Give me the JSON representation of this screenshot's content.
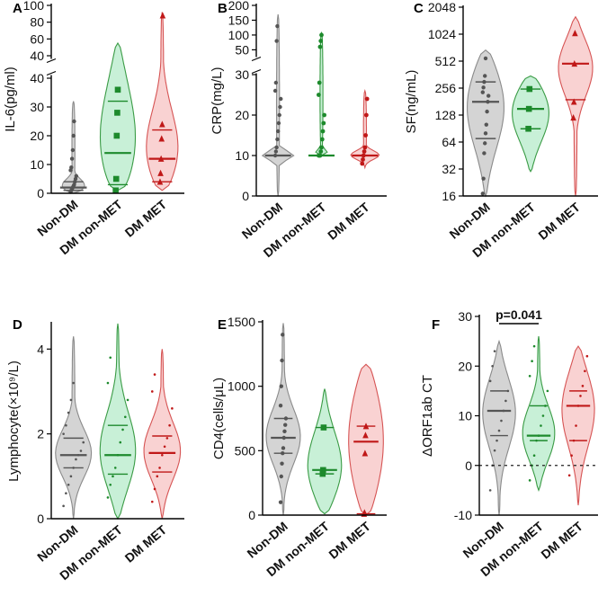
{
  "colors": {
    "grey": {
      "fill": "#d4d4d4",
      "stroke": "#8a8a8a",
      "mark": "#555555"
    },
    "green": {
      "fill": "#c8f0d7",
      "stroke": "#3a9b45",
      "mark": "#1d8a2c"
    },
    "red": {
      "fill": "#f9d2d2",
      "stroke": "#d65454",
      "mark": "#c01818"
    }
  },
  "chart_data": [
    {
      "panel": "A",
      "type": "violin",
      "ylabel": "IL-6(pg/ml)",
      "categories": [
        "Non-DM",
        "DM non-MET",
        "DM MET"
      ],
      "segments": [
        {
          "min": 0,
          "max": 40,
          "ticks": [
            0,
            10,
            20,
            30,
            40
          ]
        },
        {
          "min": 40,
          "max": 100,
          "ticks": [
            40,
            60,
            80,
            100
          ]
        }
      ],
      "groups": [
        {
          "median": 2,
          "q1": 1,
          "q3": 4,
          "min": 0,
          "max": 32,
          "points": [
            0.5,
            1,
            1.5,
            2,
            2.5,
            3,
            4,
            5,
            6,
            8,
            9,
            12,
            15,
            20,
            25
          ]
        },
        {
          "median": 14,
          "q1": 3,
          "q3": 32,
          "min": 1,
          "max": 55,
          "points": [
            1,
            5,
            20,
            28,
            36
          ]
        },
        {
          "median": 12,
          "q1": 4,
          "q3": 22,
          "min": 1,
          "max": 92,
          "points": [
            4,
            7,
            12,
            19,
            24,
            88
          ]
        }
      ]
    },
    {
      "panel": "B",
      "type": "violin",
      "ylabel": "CRP(mg/L)",
      "categories": [
        "Non-DM",
        "DM non-MET",
        "DM MET"
      ],
      "segments": [
        {
          "min": 0,
          "max": 30,
          "ticks": [
            0,
            10,
            20,
            30
          ]
        },
        {
          "min": 30,
          "max": 200,
          "ticks": [
            50,
            100,
            150,
            200
          ]
        }
      ],
      "groups": [
        {
          "median": 10,
          "q1": 10,
          "q3": 10,
          "min": 0,
          "max": 170,
          "points": [
            10,
            11,
            12,
            14,
            16,
            18,
            20,
            22,
            24,
            26,
            28,
            80,
            130
          ]
        },
        {
          "median": 10,
          "q1": 10,
          "q3": 10,
          "min": 10,
          "max": 110,
          "points": [
            10,
            10,
            10,
            11,
            12,
            14,
            16,
            18,
            20,
            25,
            28,
            60,
            80,
            100
          ]
        },
        {
          "median": 10,
          "q1": 10,
          "q3": 10,
          "min": 7,
          "max": 26,
          "points": [
            8,
            9,
            10,
            11,
            12,
            15,
            20,
            24
          ]
        }
      ]
    },
    {
      "panel": "C",
      "type": "violin",
      "ylabel": "SF(ng/mL)",
      "yscale": "log2",
      "categories": [
        "Non-DM",
        "DM non-MET",
        "DM MET"
      ],
      "ylim": [
        16,
        2048
      ],
      "ticks": [
        16,
        32,
        64,
        128,
        256,
        512,
        1024,
        2048
      ],
      "groups": [
        {
          "median": 180,
          "q1": 70,
          "q3": 300,
          "min": 16,
          "max": 680,
          "points": [
            17,
            25,
            48,
            62,
            80,
            100,
            140,
            180,
            210,
            230,
            260,
            300,
            350,
            550
          ]
        },
        {
          "median": 150,
          "q1": 90,
          "q3": 250,
          "min": 30,
          "max": 350,
          "points": [
            90,
            150,
            250
          ]
        },
        {
          "median": 480,
          "q1": 190,
          "q3": 480,
          "min": 16,
          "max": 1600,
          "points": [
            120,
            180,
            480,
            1050
          ]
        }
      ]
    },
    {
      "panel": "D",
      "type": "violin",
      "ylabel": "Lymphocyte(×10⁹/L)",
      "categories": [
        "Non-DM",
        "DM non-MET",
        "DM MET"
      ],
      "ylim": [
        0,
        4.6
      ],
      "ticks": [
        0,
        2,
        4
      ],
      "groups": [
        {
          "median": 1.5,
          "q1": 1.2,
          "q3": 1.9,
          "min": 0,
          "max": 4.3,
          "points": [
            0.3,
            0.6,
            0.8,
            1.0,
            1.2,
            1.4,
            1.5,
            1.6,
            1.8,
            2.0,
            2.2,
            2.5,
            2.8,
            3.2
          ]
        },
        {
          "median": 1.5,
          "q1": 1.05,
          "q3": 2.2,
          "min": 0,
          "max": 4.6,
          "points": [
            0.5,
            0.8,
            1.0,
            1.2,
            1.5,
            1.8,
            2.1,
            2.4,
            2.8,
            3.2,
            3.8
          ]
        },
        {
          "median": 1.55,
          "q1": 1.1,
          "q3": 1.95,
          "min": 0,
          "max": 4.0,
          "points": [
            0.4,
            0.7,
            1.0,
            1.2,
            1.5,
            1.7,
            1.9,
            2.2,
            2.6,
            3.0,
            3.4
          ]
        }
      ]
    },
    {
      "panel": "E",
      "type": "violin",
      "ylabel": "CD4(cells/μL)",
      "categories": [
        "Non-DM",
        "DM non-MET",
        "DM MET"
      ],
      "ylim": [
        0,
        1500
      ],
      "ticks": [
        0,
        500,
        1000,
        1500
      ],
      "groups": [
        {
          "median": 600,
          "q1": 480,
          "q3": 750,
          "min": 0,
          "max": 1490,
          "points": [
            100,
            300,
            400,
            480,
            520,
            600,
            650,
            700,
            750,
            850,
            1000,
            1200,
            1400
          ]
        },
        {
          "median": 350,
          "q1": 320,
          "q3": 680,
          "min": 10,
          "max": 980,
          "points": [
            320,
            350,
            680
          ]
        },
        {
          "median": 570,
          "q1": 10,
          "q3": 690,
          "min": 0,
          "max": 1170,
          "points": [
            10,
            20,
            480,
            620,
            690
          ]
        }
      ]
    },
    {
      "panel": "F",
      "type": "violin",
      "ylabel": "ΔORF1ab CT",
      "categories": [
        "Non-DM",
        "DM non-MET",
        "DM MET"
      ],
      "ylim": [
        -10,
        30
      ],
      "ticks": [
        -10,
        0,
        10,
        20,
        30
      ],
      "reference_line": 0,
      "annotation": {
        "text": "p=0.041",
        "between": [
          "Non-DM",
          "DM non-MET"
        ]
      },
      "groups": [
        {
          "median": 11,
          "q1": 6,
          "q3": 15,
          "min": -10,
          "max": 25,
          "points": [
            -5,
            0,
            3,
            5,
            7,
            9,
            11,
            13,
            15,
            17,
            20,
            23
          ]
        },
        {
          "median": 6,
          "q1": 5,
          "q3": 12,
          "min": -5,
          "max": 26,
          "points": [
            -3,
            0,
            2,
            5,
            6,
            8,
            10,
            12,
            15,
            18,
            21,
            24
          ]
        },
        {
          "median": 12,
          "q1": 5,
          "q3": 15,
          "min": -8,
          "max": 24,
          "points": [
            -2,
            2,
            5,
            8,
            12,
            14,
            16,
            19,
            22
          ]
        }
      ]
    }
  ]
}
